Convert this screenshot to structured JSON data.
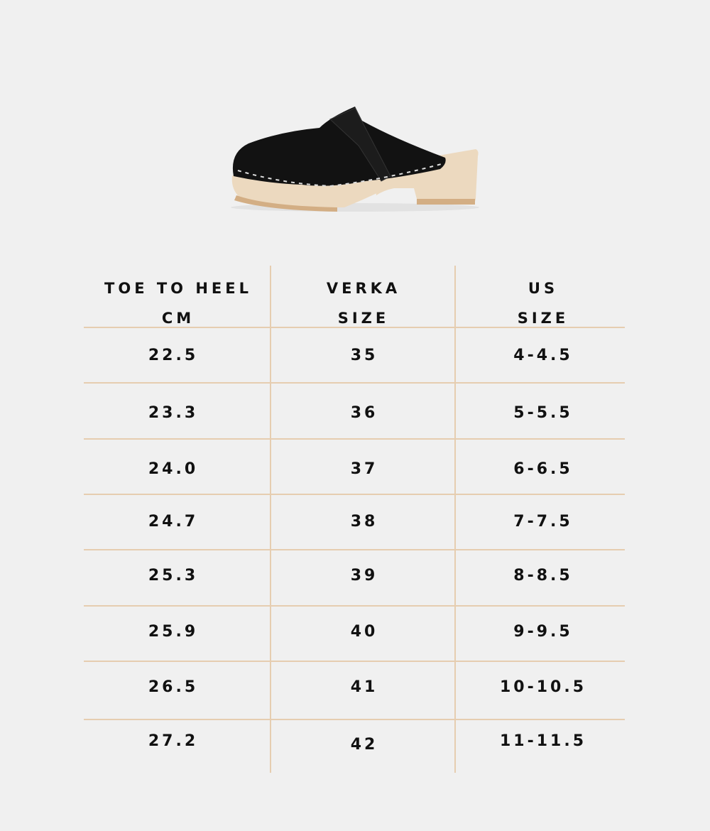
{
  "product_image": {
    "alt": "black leather clog with natural wood sole"
  },
  "colors": {
    "background": "#f0f0f0",
    "grid_lines": "#e6cdb0",
    "text": "#111111"
  },
  "table": {
    "headers": [
      {
        "line1": "TOE TO HEEL",
        "line2": "CM"
      },
      {
        "line1": "VERKA",
        "line2": "SIZE"
      },
      {
        "line1": "US",
        "line2": "SIZE"
      }
    ],
    "rows": [
      [
        "22.5",
        "35",
        "4-4.5"
      ],
      [
        "23.3",
        "36",
        "5-5.5"
      ],
      [
        "24.0",
        "37",
        "6-6.5"
      ],
      [
        "24.7",
        "38",
        "7-7.5"
      ],
      [
        "25.3",
        "39",
        "8-8.5"
      ],
      [
        "25.9",
        "40",
        "9-9.5"
      ],
      [
        "26.5",
        "41",
        "10-10.5"
      ],
      [
        "27.2",
        "42",
        "11-11.5"
      ]
    ]
  }
}
